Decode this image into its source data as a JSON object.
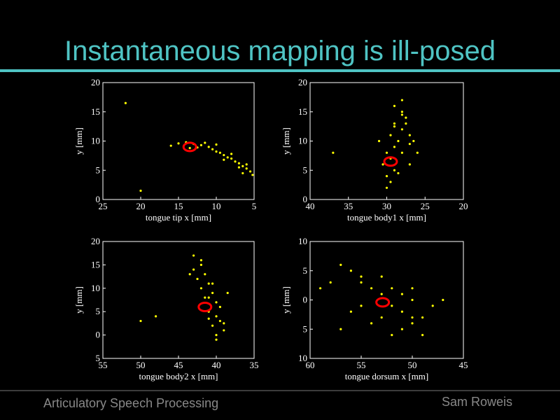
{
  "title": "Instantaneous mapping is ill-posed",
  "footer": {
    "left": "Articulatory Speech Processing",
    "right": "Sam Roweis"
  },
  "chart_data": [
    {
      "type": "scatter",
      "xlabel": "tongue tip x [mm]",
      "ylabel": "y [mm]",
      "xlim": [
        25,
        5
      ],
      "xticks": [
        25,
        20,
        15,
        10,
        5
      ],
      "ylim": [
        0,
        20
      ],
      "yticks": [
        0,
        5,
        10,
        15,
        20
      ],
      "series": [
        {
          "color": "#ffff00",
          "x": [
            14,
            13,
            12,
            11,
            10.5,
            10,
            9.5,
            9,
            8.5,
            8,
            7.5,
            7,
            6.5,
            6,
            5.5,
            5.2,
            15,
            13.5,
            11.5,
            9,
            7,
            6,
            8,
            12.5,
            10,
            6.5,
            16,
            20,
            22
          ],
          "values": [
            9.8,
            9.5,
            9.3,
            9,
            8.6,
            8.2,
            8,
            7.6,
            7.2,
            7,
            6.5,
            6.2,
            5.7,
            5.3,
            4.8,
            4.2,
            9.6,
            8.8,
            9.7,
            6.8,
            5.5,
            6,
            7.8,
            8.9,
            9.4,
            4.5,
            9.2,
            1.5,
            16.5
          ]
        },
        {
          "color": "#ff0000",
          "marker": "ring",
          "x": [
            13.5
          ],
          "values": [
            9
          ]
        }
      ]
    },
    {
      "type": "scatter",
      "xlabel": "tongue body1 x [mm]",
      "ylabel": "y [mm]",
      "xlim": [
        40,
        20
      ],
      "xticks": [
        40,
        35,
        30,
        25,
        20
      ],
      "ylim": [
        0,
        20
      ],
      "yticks": [
        0,
        5,
        10,
        15,
        20
      ],
      "series": [
        {
          "color": "#ffff00",
          "x": [
            29,
            28,
            27.5,
            29,
            28,
            27,
            29.5,
            28.5,
            27,
            29,
            30,
            28,
            29.5,
            30.5,
            29,
            30,
            29.5,
            30,
            28.5,
            27.5,
            26.5,
            28,
            31,
            26,
            27,
            29,
            28,
            37
          ],
          "values": [
            16,
            15,
            14,
            13,
            12,
            11,
            11,
            10,
            9.5,
            9,
            8,
            8,
            7,
            6,
            5,
            4,
            3,
            2,
            4.5,
            13,
            10,
            17,
            10,
            8,
            6,
            12.5,
            14.5,
            8
          ]
        },
        {
          "color": "#ff0000",
          "marker": "ring",
          "x": [
            29.5
          ],
          "values": [
            6.5
          ]
        }
      ]
    },
    {
      "type": "scatter",
      "xlabel": "tongue body2 x [mm]",
      "ylabel": "y [mm]",
      "xlim": [
        55,
        35
      ],
      "xticks": [
        55,
        50,
        45,
        40,
        35
      ],
      "ylim": [
        -5,
        20
      ],
      "yticks": [
        {
          "value": -5,
          "label": "5"
        },
        0,
        5,
        10,
        15,
        20
      ],
      "series": [
        {
          "color": "#ffff00",
          "x": [
            43,
            42,
            43,
            41.5,
            42.5,
            41,
            42,
            40.5,
            41.5,
            40,
            41,
            40,
            39.5,
            40.5,
            39,
            40,
            40,
            39,
            41,
            42,
            43.5,
            40.5,
            41,
            39.5,
            38.5,
            48,
            50
          ],
          "values": [
            17,
            15,
            14,
            13,
            12,
            11,
            10,
            9,
            8,
            7,
            5,
            4,
            3,
            2,
            1,
            0,
            -1,
            2.5,
            3.5,
            16,
            13,
            11,
            8,
            6,
            9,
            4,
            3
          ]
        },
        {
          "color": "#ff0000",
          "marker": "ring",
          "x": [
            41.5
          ],
          "values": [
            6
          ]
        }
      ]
    },
    {
      "type": "scatter",
      "xlabel": "tongue dorsum x [mm]",
      "ylabel": "y [mm]",
      "xlim": [
        60,
        45
      ],
      "xticks": [
        60,
        55,
        50,
        45
      ],
      "ylim": [
        -10,
        10
      ],
      "yticks": [
        {
          "value": -10,
          "label": "10"
        },
        {
          "value": -5,
          "label": "5"
        },
        0,
        5,
        10
      ],
      "series": [
        {
          "color": "#ffff00",
          "x": [
            57,
            56,
            55,
            55,
            54,
            53,
            52,
            51,
            50,
            52,
            51,
            50,
            49,
            50,
            51,
            49,
            53,
            55,
            54,
            56,
            58,
            48,
            52,
            50,
            53,
            57,
            59,
            47
          ],
          "values": [
            6,
            5,
            4,
            3,
            2,
            1,
            2,
            1,
            0,
            -1,
            -2,
            -3,
            -3,
            -4,
            -5,
            -6,
            -3,
            -1,
            -4,
            -2,
            3,
            -1,
            -6,
            2,
            4,
            -5,
            2,
            0
          ]
        },
        {
          "color": "#ff0000",
          "marker": "ring",
          "x": [
            52.9
          ],
          "values": [
            -0.4
          ]
        }
      ]
    }
  ]
}
